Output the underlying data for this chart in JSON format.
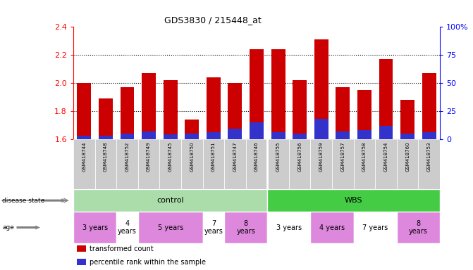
{
  "title": "GDS3830 / 215448_at",
  "samples": [
    "GSM418744",
    "GSM418748",
    "GSM418752",
    "GSM418749",
    "GSM418745",
    "GSM418750",
    "GSM418751",
    "GSM418747",
    "GSM418746",
    "GSM418755",
    "GSM418756",
    "GSM418759",
    "GSM418757",
    "GSM418758",
    "GSM418754",
    "GSM418760",
    "GSM418753"
  ],
  "transformed_count": [
    2.0,
    1.89,
    1.97,
    2.07,
    2.02,
    1.74,
    2.04,
    2.0,
    2.24,
    2.24,
    2.02,
    2.31,
    1.97,
    1.95,
    2.17,
    1.88,
    2.07
  ],
  "percentile_rank": [
    3.0,
    3.0,
    5.0,
    7.0,
    4.0,
    5.0,
    6.0,
    9.0,
    15.0,
    6.0,
    5.0,
    18.0,
    7.0,
    8.0,
    12.0,
    5.0,
    6.0
  ],
  "ymin": 1.6,
  "ymax": 2.4,
  "yticks": [
    1.6,
    1.8,
    2.0,
    2.2,
    2.4
  ],
  "right_ytick_vals": [
    0,
    25,
    50,
    75,
    100
  ],
  "right_ytick_labels": [
    "0",
    "25",
    "50",
    "75",
    "100%"
  ],
  "bar_color": "#cc0000",
  "blue_color": "#3333cc",
  "disease_state_control": {
    "start": 0,
    "end": 9,
    "label": "control",
    "color": "#aaddaa"
  },
  "disease_state_wbs": {
    "start": 9,
    "end": 17,
    "label": "WBS",
    "color": "#44cc44"
  },
  "age_groups": [
    {
      "label": "3 years",
      "start": 0,
      "end": 2,
      "color": "#dd88dd"
    },
    {
      "label": "4\nyears",
      "start": 2,
      "end": 3,
      "color": "#ffffff"
    },
    {
      "label": "5 years",
      "start": 3,
      "end": 6,
      "color": "#dd88dd"
    },
    {
      "label": "7\nyears",
      "start": 6,
      "end": 7,
      "color": "#ffffff"
    },
    {
      "label": "8\nyears",
      "start": 7,
      "end": 9,
      "color": "#dd88dd"
    },
    {
      "label": "3 years",
      "start": 9,
      "end": 11,
      "color": "#ffffff"
    },
    {
      "label": "4 years",
      "start": 11,
      "end": 13,
      "color": "#dd88dd"
    },
    {
      "label": "7 years",
      "start": 13,
      "end": 15,
      "color": "#ffffff"
    },
    {
      "label": "8\nyears",
      "start": 15,
      "end": 17,
      "color": "#dd88dd"
    }
  ],
  "legend_items": [
    {
      "color": "#cc0000",
      "label": "transformed count"
    },
    {
      "color": "#3333cc",
      "label": "percentile rank within the sample"
    }
  ]
}
